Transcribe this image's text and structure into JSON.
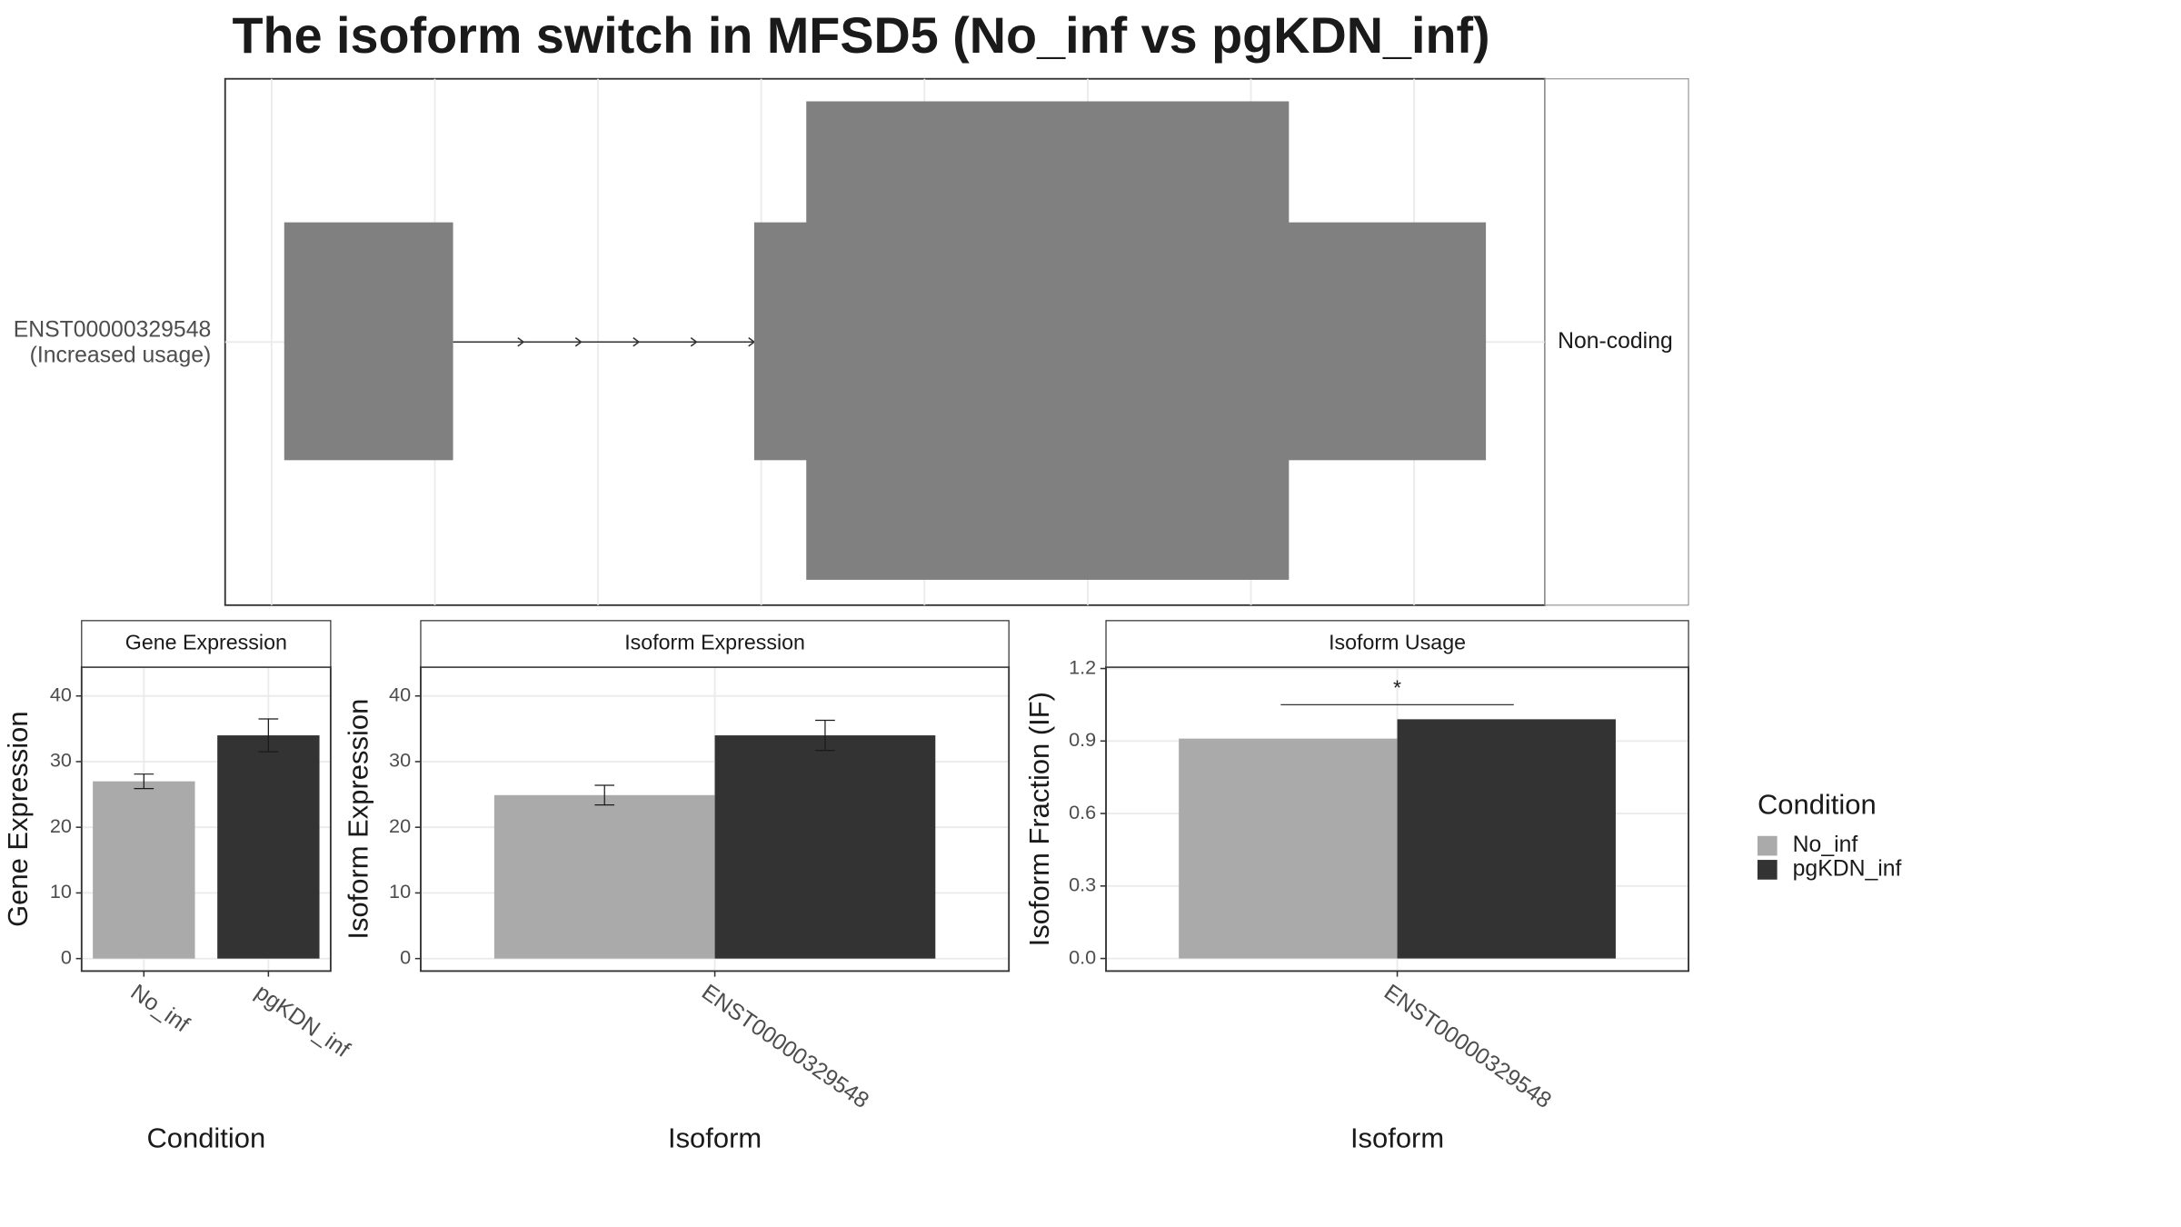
{
  "chart_data": [
    {
      "type": "transcript",
      "title": "The isoform switch in MFSD5 (No_inf vs pgKDN_inf)",
      "isoform_label": [
        "ENST00000329548",
        "(Increased usage)"
      ],
      "transcript_type": "Non-coding"
    },
    {
      "type": "bar",
      "facet": "Gene Expression",
      "ylabel": "Gene Expression",
      "xlabel": "Condition",
      "categories": [
        "No_inf",
        "pgKDN_inf"
      ],
      "values": [
        27,
        34
      ],
      "errors": [
        1.1,
        2.5
      ],
      "colors": [
        "#aaaaaa",
        "#333333"
      ],
      "ylim": [
        -1.9,
        44.4
      ],
      "yticks": [
        0,
        10,
        20,
        30,
        40
      ],
      "grid": true
    },
    {
      "type": "grouped_bar",
      "facet": "Isoform Expression",
      "ylabel": "Isoform Expression",
      "xlabel": "Isoform",
      "categories": [
        "ENST00000329548"
      ],
      "series": [
        {
          "name": "No_inf",
          "color": "#aaaaaa",
          "values": [
            24.9
          ],
          "errors": [
            1.5
          ]
        },
        {
          "name": "pgKDN_inf",
          "color": "#333333",
          "values": [
            34.0
          ],
          "errors": [
            2.3
          ]
        }
      ],
      "ylim": [
        -1.9,
        44.4
      ],
      "yticks": [
        0,
        10,
        20,
        30,
        40
      ],
      "grid": true
    },
    {
      "type": "grouped_bar",
      "facet": "Isoform Usage",
      "ylabel": "Isoform Fraction (IF)",
      "xlabel": "Isoform",
      "categories": [
        "ENST00000329548"
      ],
      "series": [
        {
          "name": "No_inf",
          "color": "#aaaaaa",
          "values": [
            0.91
          ]
        },
        {
          "name": "pgKDN_inf",
          "color": "#333333",
          "values": [
            0.99
          ]
        }
      ],
      "significance": {
        "label": "*",
        "y": 1.05
      },
      "ylim": [
        -0.052,
        1.206
      ],
      "yticks": [
        {
          "value": 0,
          "label": "0.0"
        },
        0.3,
        0.6,
        0.9,
        1.2
      ],
      "grid": true,
      "legend_title": "Condition"
    }
  ]
}
